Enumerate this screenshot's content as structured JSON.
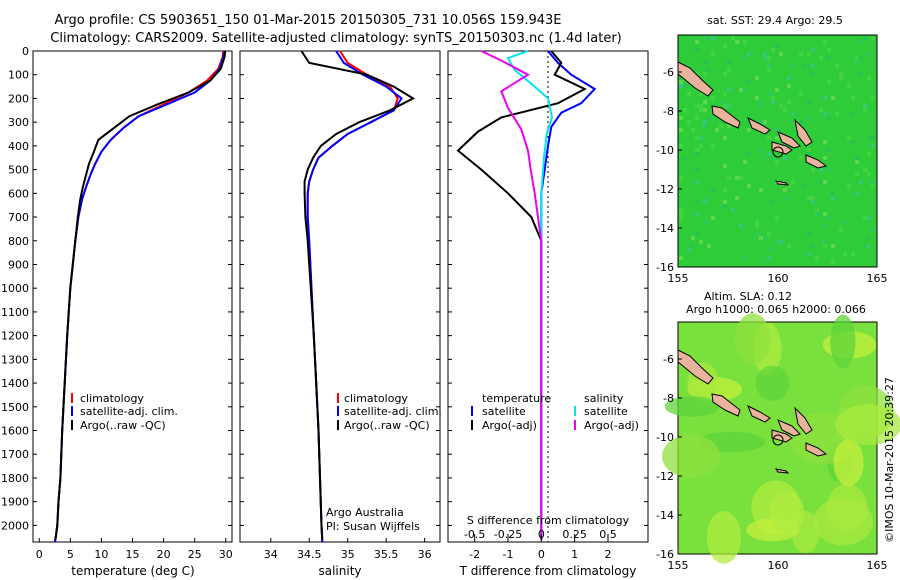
{
  "header": {
    "line1": "Argo profile: CS 5903651_150 01-Mar-2015 20150305_731 10.056S 159.943E",
    "line2": "Climatology: CARS2009. Satellite-adjusted climatology: synTS_20150303.nc (1.4d later)"
  },
  "colors": {
    "climatology": "#ff0000",
    "satellite": "#0000ff",
    "argo": "#000000",
    "sal_satellite": "#00e5ee",
    "sal_argo": "#ee00ee",
    "land": "#eab39b",
    "ocean_sst": "#2fcc3a",
    "ocean_sla": "#7ae03e"
  },
  "depth_axis": {
    "ticks": [
      0,
      100,
      200,
      300,
      400,
      500,
      600,
      700,
      800,
      900,
      1000,
      1100,
      1200,
      1300,
      1400,
      1500,
      1600,
      1700,
      1800,
      1900,
      2000
    ],
    "ylim": [
      2070,
      0
    ]
  },
  "chart_data": [
    {
      "type": "line",
      "id": "temperature",
      "xlabel": "temperature (deg C)",
      "xlim": [
        -1,
        31
      ],
      "xticks": [
        0,
        5,
        10,
        15,
        20,
        25,
        30
      ],
      "xtick_labels": [
        "0",
        "5",
        "10",
        "15",
        "20",
        "25",
        "30"
      ],
      "legend": [
        "climatology",
        "satellite-adj. clim.",
        "Argo(..raw -QC)"
      ],
      "series": [
        {
          "name": "climatology",
          "x": [
            29.6,
            29.5,
            28.8,
            27.0,
            24.0,
            20.0,
            16.0,
            13.5,
            11.5,
            10.0,
            9.0,
            8.2,
            7.5,
            6.9,
            6.3,
            5.8,
            5.0,
            4.5,
            4.1,
            3.7,
            3.4,
            3.1,
            2.9,
            2.6,
            2.5
          ],
          "depth": [
            0,
            25,
            75,
            125,
            175,
            225,
            275,
            325,
            375,
            425,
            475,
            525,
            575,
            625,
            700,
            800,
            1000,
            1200,
            1400,
            1600,
            1800,
            1900,
            2000,
            2060,
            2070
          ]
        },
        {
          "name": "satellite-adj. clim.",
          "x": [
            29.8,
            29.6,
            29.0,
            27.5,
            25.0,
            20.5,
            16.0,
            13.5,
            11.5,
            10.0,
            9.0,
            8.2,
            7.5,
            6.9,
            6.3,
            5.8,
            5.0,
            4.5,
            4.1,
            3.7,
            3.4,
            3.1,
            2.9,
            2.6,
            2.5
          ],
          "depth": [
            0,
            25,
            75,
            125,
            175,
            225,
            275,
            325,
            375,
            425,
            475,
            525,
            575,
            625,
            700,
            800,
            1000,
            1200,
            1400,
            1600,
            1800,
            1900,
            2000,
            2060,
            2070
          ]
        },
        {
          "name": "Argo",
          "x": [
            29.9,
            29.8,
            29.2,
            27.5,
            24.0,
            19.0,
            14.5,
            12.0,
            9.5,
            8.8,
            8.0,
            7.5,
            7.0,
            6.6,
            6.2,
            5.8,
            5.0,
            4.5,
            4.1,
            3.7,
            3.4,
            3.1,
            2.9,
            2.6
          ],
          "depth": [
            0,
            25,
            75,
            125,
            175,
            225,
            275,
            325,
            375,
            425,
            475,
            525,
            575,
            625,
            700,
            800,
            1000,
            1200,
            1400,
            1600,
            1800,
            1900,
            2000,
            2060
          ]
        }
      ]
    },
    {
      "type": "line",
      "id": "salinity",
      "xlabel": "salinity",
      "xlim": [
        33.6,
        36.2
      ],
      "xticks": [
        34,
        34.5,
        35,
        35.5,
        36
      ],
      "xtick_labels": [
        "34",
        "34.5",
        "35",
        "35.5",
        "36"
      ],
      "legend": [
        "climatology",
        "satellite-adj. clim.",
        "Argo(..raw -QC)"
      ],
      "note": [
        "Argo Australia",
        "PI: Susan Wijffels"
      ],
      "series": [
        {
          "name": "climatology",
          "x": [
            34.9,
            35.0,
            35.25,
            35.55,
            35.65,
            35.6,
            35.3,
            35.0,
            34.8,
            34.62,
            34.55,
            34.5,
            34.48,
            34.48,
            34.5,
            34.53,
            34.56,
            34.59,
            34.62,
            34.64,
            34.66,
            34.67
          ],
          "depth": [
            0,
            50,
            100,
            150,
            200,
            250,
            300,
            350,
            400,
            450,
            500,
            550,
            600,
            700,
            800,
            1000,
            1200,
            1400,
            1600,
            1800,
            2000,
            2070
          ]
        },
        {
          "name": "satellite-adj. clim.",
          "x": [
            34.85,
            34.95,
            35.2,
            35.5,
            35.7,
            35.6,
            35.3,
            35.0,
            34.8,
            34.62,
            34.55,
            34.5,
            34.48,
            34.48,
            34.5,
            34.53,
            34.56,
            34.59,
            34.62,
            34.64,
            34.66,
            34.67
          ],
          "depth": [
            0,
            50,
            100,
            150,
            200,
            250,
            300,
            350,
            400,
            450,
            500,
            550,
            600,
            700,
            800,
            1000,
            1200,
            1400,
            1600,
            1800,
            2000,
            2070
          ]
        },
        {
          "name": "Argo",
          "x": [
            34.4,
            34.5,
            35.25,
            35.6,
            35.85,
            35.55,
            35.15,
            34.85,
            34.65,
            34.55,
            34.48,
            34.44,
            34.44,
            34.45,
            34.48,
            34.52,
            34.56,
            34.59,
            34.62,
            34.64,
            34.66,
            34.67
          ],
          "depth": [
            0,
            50,
            100,
            150,
            200,
            250,
            300,
            350,
            400,
            450,
            500,
            550,
            600,
            700,
            800,
            1000,
            1200,
            1400,
            1600,
            1800,
            2000,
            2060
          ]
        }
      ]
    },
    {
      "type": "line",
      "id": "difference",
      "xlabel": "T difference from climatology",
      "xlim": [
        -2.8,
        3.2
      ],
      "xticks": [
        -2,
        -1,
        0,
        1,
        2
      ],
      "xtick_labels": [
        "-2",
        "-1",
        "0",
        "1",
        "2"
      ],
      "s_xlabel": "S difference from climatology",
      "s_xlim": [
        -0.7,
        0.8
      ],
      "s_xticks": [
        -0.5,
        -0.25,
        0,
        0.25,
        0.5
      ],
      "s_xtick_labels": [
        "-0.5",
        "-0.25",
        "0",
        "0.25",
        "0.5"
      ],
      "legend_temperature": [
        "temperature",
        "satellite",
        "Argo(-adj)"
      ],
      "legend_salinity": [
        "salinity",
        "satellite",
        "Argo(-adj)"
      ],
      "series": [
        {
          "name": "temperature satellite",
          "axis": "T",
          "x": [
            0.2,
            0.5,
            0.9,
            1.6,
            1.2,
            0.6,
            0.3,
            0.2,
            0.1,
            0,
            0,
            0,
            0,
            0,
            0,
            0,
            0
          ],
          "depth": [
            0,
            50,
            100,
            160,
            220,
            260,
            320,
            400,
            500,
            600,
            700,
            800,
            1000,
            1200,
            1400,
            1800,
            2060
          ]
        },
        {
          "name": "temperature Argo(-adj)",
          "axis": "T",
          "x": [
            0.3,
            0.6,
            0.4,
            1.3,
            0.5,
            -1.2,
            -1.9,
            -2.5,
            -1.8,
            -1.0,
            -0.3,
            0,
            0,
            0,
            0,
            0
          ],
          "depth": [
            0,
            50,
            100,
            160,
            220,
            280,
            340,
            420,
            500,
            600,
            700,
            800,
            1000,
            1400,
            1800,
            2060
          ]
        },
        {
          "name": "salinity satellite",
          "axis": "S",
          "x": [
            -0.1,
            -0.25,
            -0.2,
            -0.05,
            0.05,
            0.08,
            0.04,
            0.02,
            0,
            0,
            0,
            0,
            0,
            0
          ],
          "depth": [
            0,
            30,
            80,
            150,
            200,
            280,
            350,
            450,
            600,
            800,
            1000,
            1400,
            1800,
            2060
          ]
        },
        {
          "name": "salinity Argo(-adj)",
          "axis": "S",
          "x": [
            -0.45,
            -0.3,
            -0.1,
            -0.3,
            -0.25,
            -0.15,
            -0.1,
            -0.08,
            -0.05,
            0,
            0,
            0
          ],
          "depth": [
            0,
            40,
            100,
            170,
            240,
            330,
            420,
            500,
            600,
            800,
            1400,
            2060
          ]
        }
      ]
    }
  ],
  "maps": [
    {
      "id": "sst",
      "title": "sat. SST: 29.4  Argo: 29.5",
      "lon_ticks": [
        "155",
        "160",
        "165"
      ],
      "lat_ticks": [
        "-6",
        "-8",
        "-10",
        "-12",
        "-14",
        "-16"
      ]
    },
    {
      "id": "sla",
      "title_line1": "Altim. SLA: 0.12",
      "title_line2": "Argo h1000: 0.065  h2000: 0.066",
      "lon_ticks": [
        "155",
        "160",
        "165"
      ],
      "lat_ticks": [
        "-6",
        "-8",
        "-10",
        "-12",
        "-14",
        "-16"
      ]
    }
  ],
  "stamp": "©IMOS 10-Mar-2015 20:39:27"
}
